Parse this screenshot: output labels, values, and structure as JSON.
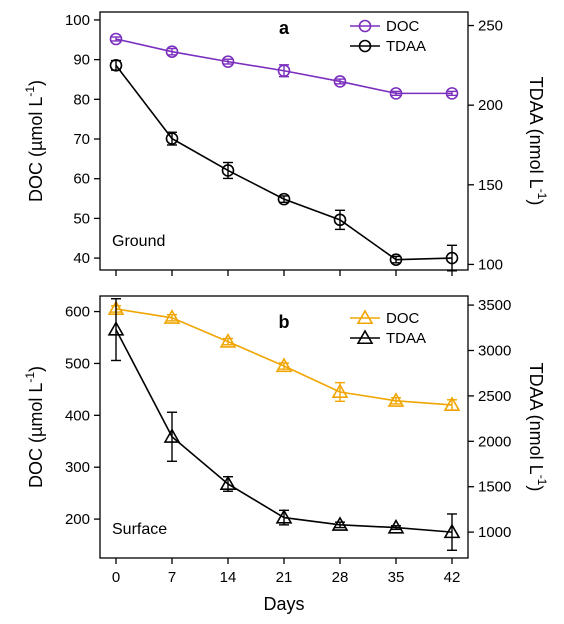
{
  "chart_data": [
    {
      "type": "line",
      "panel_label": "a",
      "annotation": "Ground",
      "x": [
        0,
        7,
        14,
        21,
        28,
        35,
        42
      ],
      "xlim": [
        -2,
        44
      ],
      "left_axis": {
        "label": "DOC (µmol L",
        "superscript": "-1",
        "close": ")",
        "ylim": [
          37,
          102
        ],
        "ticks": [
          40,
          50,
          60,
          70,
          80,
          90,
          100
        ]
      },
      "right_axis": {
        "label": "TDAA (nmol L",
        "superscript": "-1",
        "close": ")",
        "ylim": [
          96.5,
          258.5
        ],
        "ticks": [
          100,
          150,
          200,
          250
        ]
      },
      "series": [
        {
          "name": "DOC",
          "axis": "left",
          "marker": "circle",
          "color": "#7b2fbe",
          "values": [
            95.2,
            92.0,
            89.5,
            87.2,
            84.5,
            81.5,
            81.5
          ],
          "errors": [
            0.5,
            0.8,
            0.6,
            1.5,
            0.6,
            0.5,
            0.5
          ]
        },
        {
          "name": "TDAA",
          "axis": "right",
          "marker": "circle",
          "color": "#000000",
          "values": [
            225,
            179,
            159,
            141,
            128,
            103,
            104
          ],
          "errors": [
            3,
            4,
            5,
            2,
            6,
            2,
            8
          ]
        }
      ]
    },
    {
      "type": "line",
      "panel_label": "b",
      "annotation": "Surface",
      "x": [
        0,
        7,
        14,
        21,
        28,
        35,
        42
      ],
      "xlim": [
        -2,
        44
      ],
      "xlabel": "Days",
      "xticks": [
        "0",
        "7",
        "14",
        "21",
        "28",
        "35",
        "42"
      ],
      "left_axis": {
        "label": "DOC (µmol L",
        "superscript": "-1",
        "close": ")",
        "ylim": [
          125,
          630
        ],
        "ticks": [
          200,
          300,
          400,
          500,
          600
        ]
      },
      "right_axis": {
        "label": "TDAA (nmol L",
        "superscript": "-1",
        "close": ")",
        "ylim": [
          715,
          3600
        ],
        "ticks": [
          1000,
          1500,
          2000,
          2500,
          3000,
          3500
        ]
      },
      "series": [
        {
          "name": "DOC",
          "axis": "left",
          "marker": "triangle",
          "color": "#f0a500",
          "values": [
            605,
            588,
            542,
            495,
            445,
            428,
            420
          ],
          "errors": [
            6,
            6,
            6,
            6,
            18,
            6,
            10
          ]
        },
        {
          "name": "TDAA",
          "axis": "right",
          "marker": "triangle",
          "color": "#000000",
          "values": [
            3230,
            2050,
            1530,
            1160,
            1080,
            1050,
            1000
          ],
          "errors": [
            340,
            270,
            80,
            80,
            30,
            20,
            200
          ]
        }
      ]
    }
  ]
}
